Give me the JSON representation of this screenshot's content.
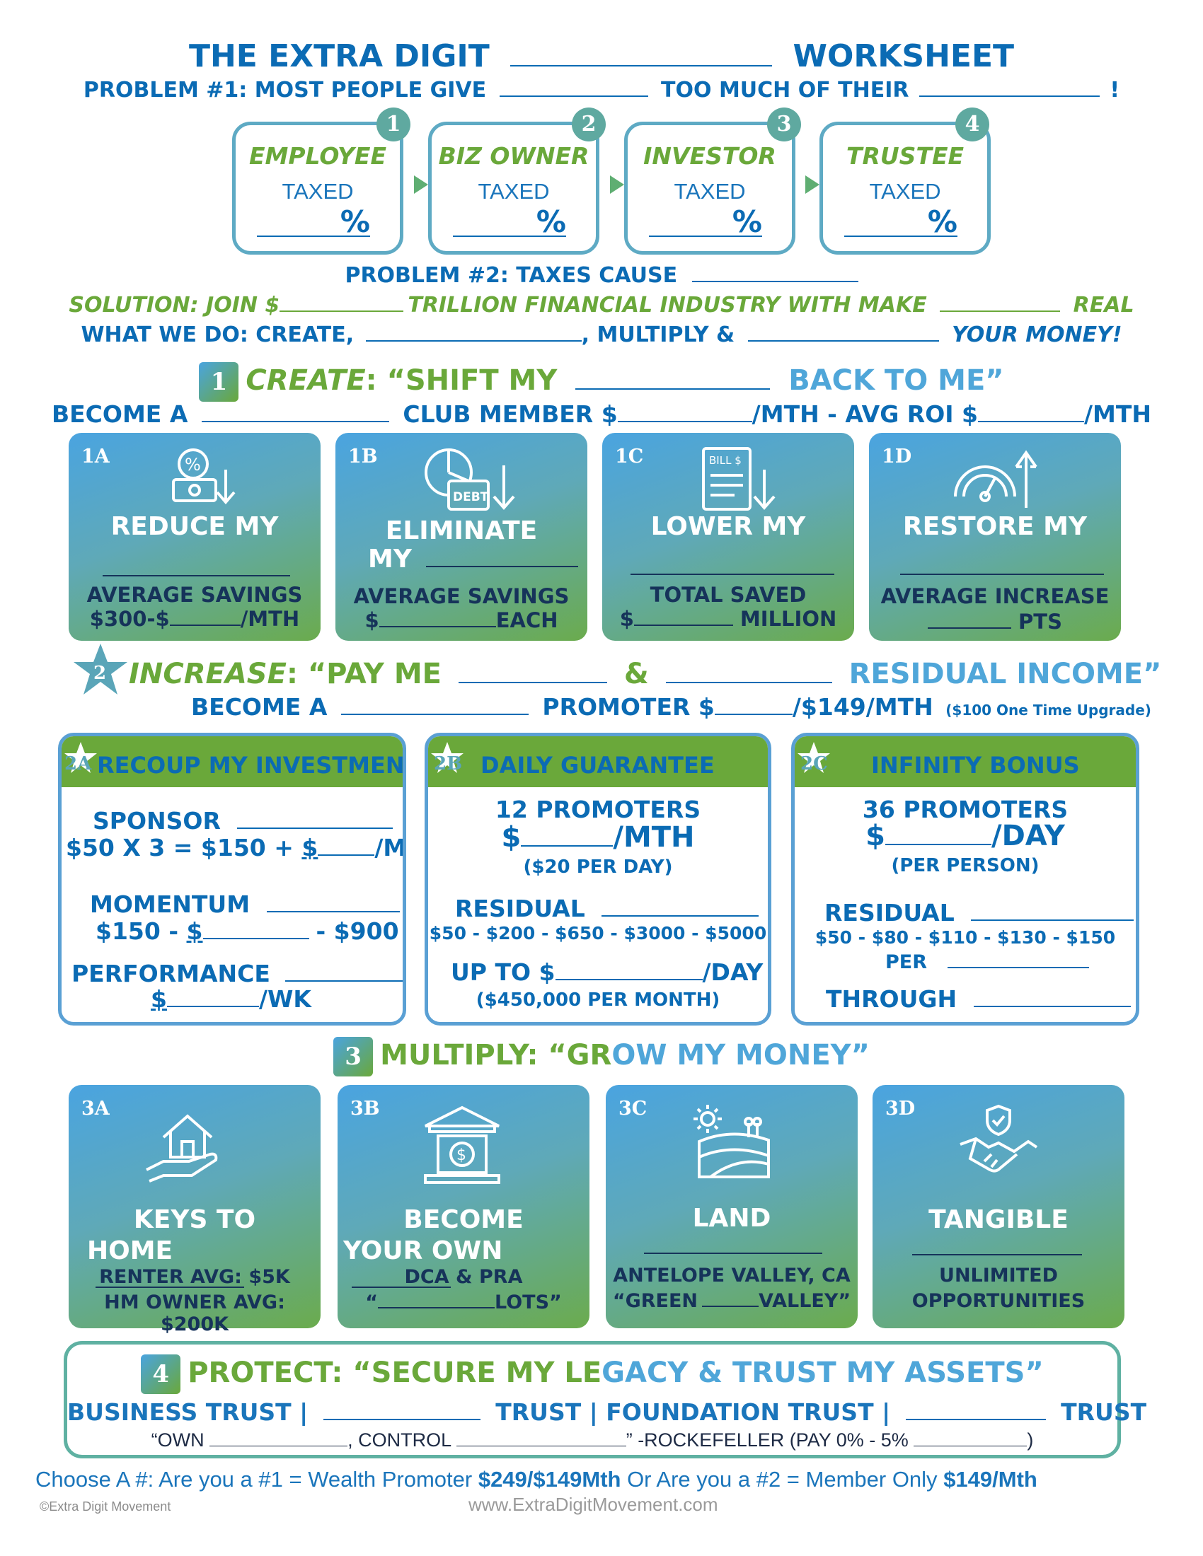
{
  "header": {
    "title_left": "THE EXTRA DIGIT",
    "title_right": "WORKSHEET",
    "problem1_a": "PROBLEM #1: MOST PEOPLE GIVE",
    "problem1_b": "TOO MUCH OF THEIR",
    "problem1_c": "!"
  },
  "stages": [
    {
      "num": "1",
      "label": "EMPLOYEE",
      "taxed": "TAXED",
      "pct": "%"
    },
    {
      "num": "2",
      "label": "BIZ OWNER",
      "taxed": "TAXED",
      "pct": "%"
    },
    {
      "num": "3",
      "label": "INVESTOR",
      "taxed": "TAXED",
      "pct": "%"
    },
    {
      "num": "4",
      "label": "TRUSTEE",
      "taxed": "TAXED",
      "pct": "%"
    }
  ],
  "problem2": "PROBLEM #2: TAXES CAUSE",
  "solution": {
    "a": "SOLUTION: JOIN $",
    "b": "TRILLION FINANCIAL INDUSTRY WITH MAKE",
    "c": "REAL"
  },
  "what_we_do": {
    "a": "WHAT WE DO: CREATE,",
    "b": ", MULTIPLY &",
    "c": "YOUR MONEY!"
  },
  "section1": {
    "num": "1",
    "create": "CREATE",
    "quote_a": ": “SHIFT MY",
    "quote_b": "BACK TO ME”",
    "member_a": "BECOME A",
    "member_b": "CLUB MEMBER $",
    "member_c": "/MTH - AVG ROI $",
    "member_d": "/MTH"
  },
  "cards1": [
    {
      "id": "1A",
      "icon": "percent-card-icon",
      "title1": "REDUCE MY",
      "sub1": "AVERAGE SAVINGS",
      "sub2": "$300-$",
      "sub3": "/MTH"
    },
    {
      "id": "1B",
      "icon": "debt-chart-icon",
      "title1": "ELIMINATE",
      "title2": "MY",
      "sub1": "AVERAGE SAVINGS",
      "sub2": "$",
      "sub3": "EACH",
      "debt_label": "DEBT"
    },
    {
      "id": "1C",
      "icon": "bill-icon",
      "title1": "LOWER MY",
      "sub1": "TOTAL SAVED",
      "sub2": "$",
      "sub3": "MILLION",
      "bill_label": "BILL $"
    },
    {
      "id": "1D",
      "icon": "gauge-arrow-icon",
      "title1": "RESTORE MY",
      "sub1": "AVERAGE INCREASE",
      "sub3": "PTS"
    }
  ],
  "section2": {
    "num": "2",
    "increase": "INCREASE",
    "quote_a": ": “PAY ME",
    "amp": "&",
    "quote_b": "RESIDUAL INCOME”",
    "promoter_a": "BECOME A",
    "promoter_b": "PROMOTER $",
    "promoter_c": "/$149/MTH",
    "promoter_note": "($100 One Time Upgrade)"
  },
  "boxes2": [
    {
      "id": "2A",
      "title": "RECOUP MY INVESTMENT",
      "l1": "SPONSOR",
      "l2a": "$50 X 3 = $150 + ",
      "l2b": "$",
      "l2c": "/MTH",
      "l3": "MOMENTUM",
      "l4a": "$150 - ",
      "l4b": "$",
      "l4c": "- $900",
      "l5": "PERFORMANCE",
      "l6a": "$",
      "l6b": "/WK"
    },
    {
      "id": "2B",
      "title": "DAILY GUARANTEE",
      "l1": "12 PROMOTERS",
      "l2a": "$",
      "l2b": "/MTH",
      "l3": "($20 PER DAY)",
      "l4": "RESIDUAL",
      "l5": "$50 - $200 - $650 - $3000 - $5000",
      "l6a": "UP TO $",
      "l6b": "/DAY",
      "l7": "($450,000 PER MONTH)"
    },
    {
      "id": "2C",
      "title": "INFINITY BONUS",
      "l1": "36 PROMOTERS",
      "l2a": "$",
      "l2b": "/DAY",
      "l3": "(PER PERSON)",
      "l4": "RESIDUAL",
      "l5": "$50 - $80 - $110 - $130 - $150",
      "l6": "PER",
      "l7": "THROUGH"
    }
  ],
  "section3": {
    "num": "3",
    "title_a": "MULTIPLY: “GR",
    "title_b": "OW MY MONEY”"
  },
  "cards3": [
    {
      "id": "3A",
      "icon": "house-hand-icon",
      "title1": "KEYS TO",
      "title2": "HOME",
      "sub1": "RENTER AVG: $5K",
      "sub2": "HM OWNER AVG: $200K"
    },
    {
      "id": "3B",
      "icon": "bank-icon",
      "title1": "BECOME",
      "title2": "YOUR OWN",
      "sub1": "DCA & PRA",
      "sub2a": "“",
      "sub2b": "LOTS”"
    },
    {
      "id": "3C",
      "icon": "land-icon",
      "title1": "LAND",
      "sub1": "ANTELOPE VALLEY, CA",
      "sub2a": "“GREEN",
      "sub2b": "VALLEY”"
    },
    {
      "id": "3D",
      "icon": "handshake-shield-icon",
      "title1": "TANGIBLE",
      "sub1": "UNLIMITED",
      "sub2": "OPPORTUNITIES"
    }
  ],
  "section4": {
    "num": "4",
    "title_a": "PROTECT: “SECURE MY LE",
    "title_b": "GACY & TRUST MY ASSETS”",
    "trust_a": "BUSINESS TRUST |",
    "trust_b": "TRUST | FOUNDATION TRUST |",
    "trust_c": "TRUST",
    "quote_a": "“OWN",
    "quote_b": ", CONTROL",
    "quote_c": "” -ROCKEFELLER (PAY 0% - 5%",
    "quote_d": ")"
  },
  "footer": {
    "choose_a": "Choose A #: Are you a #1 = Wealth Promoter ",
    "choose_b": "$249/$149Mth",
    "choose_c": " Or Are you a  #2 = Member Only ",
    "choose_d": "$149/Mth",
    "copyright": "©Extra Digit Movement",
    "website": "www.ExtraDigitMovement.com"
  },
  "colors": {
    "blue": "#0b6bb4",
    "light_blue": "#4fa6d9",
    "green": "#6aa83a",
    "teal": "#5fa9a0"
  }
}
